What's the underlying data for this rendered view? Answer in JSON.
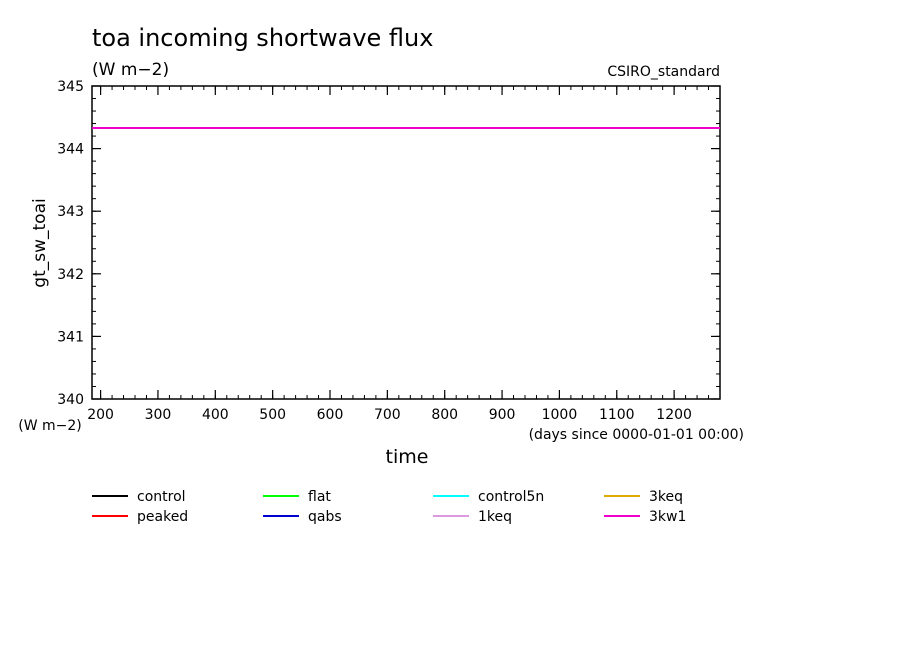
{
  "chart_data": {
    "type": "line",
    "title": "toa incoming shortwave flux",
    "subtitle": "(W m−2)",
    "annotation": "CSIRO_standard",
    "xlabel": "time",
    "x_units": "(days since 0000-01-01 00:00)",
    "ylabel": "gt_sw_toai",
    "y_units": "(W m−2)",
    "xlim": [
      185,
      1280
    ],
    "ylim": [
      340,
      345
    ],
    "x_ticks": [
      200,
      300,
      400,
      500,
      600,
      700,
      800,
      900,
      1000,
      1100,
      1200
    ],
    "y_ticks": [
      340,
      341,
      342,
      343,
      344,
      345
    ],
    "grid": false,
    "legend_position": "bottom",
    "series": [
      {
        "name": "control",
        "color": "#000000",
        "points": []
      },
      {
        "name": "peaked",
        "color": "#ff0000",
        "points": []
      },
      {
        "name": "flat",
        "color": "#00ff00",
        "points": []
      },
      {
        "name": "qabs",
        "color": "#0000cc",
        "points": []
      },
      {
        "name": "control5n",
        "color": "#00ffff",
        "points": []
      },
      {
        "name": "1keq",
        "color": "#dd99dd",
        "points": []
      },
      {
        "name": "3keq",
        "color": "#ddaa00",
        "points": []
      },
      {
        "name": "3kw1",
        "color": "#ee00cc",
        "points": [
          [
            185,
            344.33
          ],
          [
            1280,
            344.33
          ]
        ]
      }
    ]
  }
}
